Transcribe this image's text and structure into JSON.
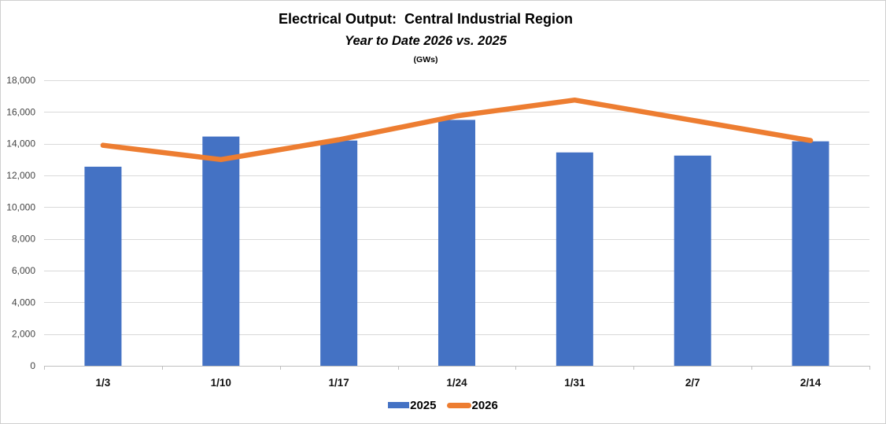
{
  "header": {
    "title": "Electrical Output:  Central Industrial Region",
    "subtitle": "Year to Date 2026 vs. 2025",
    "units": "(GWs)"
  },
  "legend": {
    "position": "bottom",
    "items": [
      {
        "label": "2025",
        "color": "#4472C4",
        "marker": "bar-swatch"
      },
      {
        "label": "2026",
        "color": "#ED7D31",
        "marker": "line-swatch"
      }
    ]
  },
  "chart_data": {
    "type": "bar",
    "title": "Electrical Output:  Central Industrial Region",
    "subtitle": "Year to Date 2026 vs. 2025",
    "units_label": "(GWs)",
    "categories": [
      "1/3",
      "1/10",
      "1/17",
      "1/24",
      "1/31",
      "2/7",
      "2/14"
    ],
    "series": [
      {
        "name": "2025",
        "type": "bar",
        "color": "#4472C4",
        "values": [
          12550,
          14450,
          14200,
          15500,
          13450,
          13250,
          14150
        ]
      },
      {
        "name": "2026",
        "type": "line",
        "color": "#ED7D31",
        "values": [
          13900,
          13000,
          14250,
          15750,
          16750,
          15475,
          14200
        ]
      }
    ],
    "xlabel": "",
    "ylabel": "",
    "ylim": [
      0,
      18000
    ],
    "ytick_interval": 2000,
    "ytick_labels": [
      "0",
      "2,000",
      "4,000",
      "6,000",
      "8,000",
      "10,000",
      "12,000",
      "14,000",
      "16,000",
      "18,000"
    ],
    "grid": true,
    "gridline_color": "#D9D9D9",
    "axis_color": "#BFBFBF",
    "ytick_text_color": "#444444",
    "xtick_text_color": "#111111",
    "legend_position": "bottom"
  }
}
